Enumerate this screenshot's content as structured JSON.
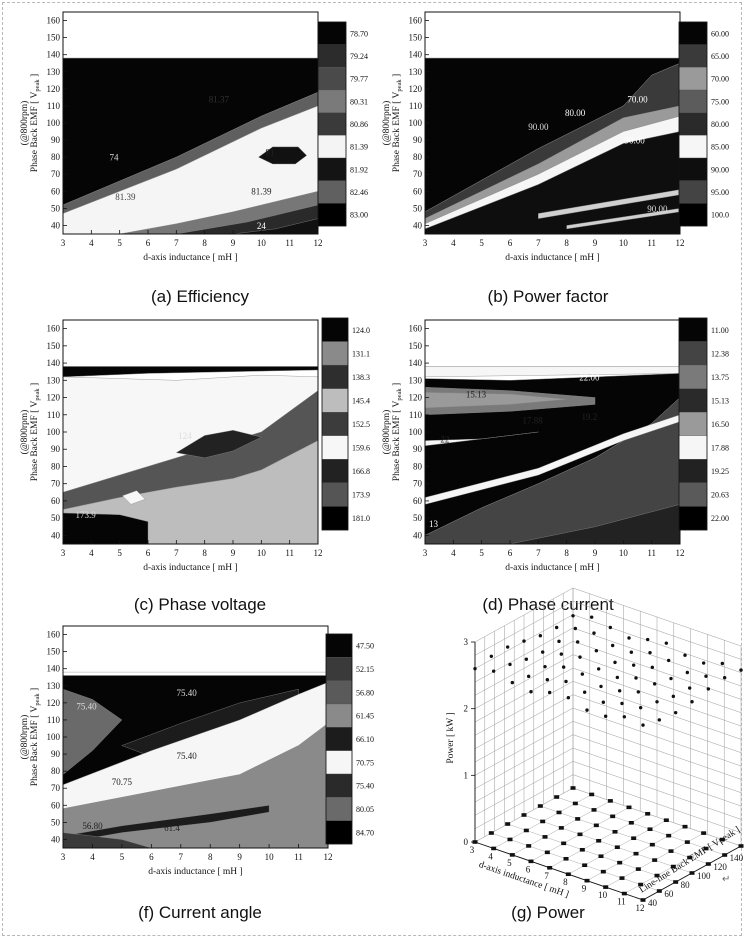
{
  "chart_data": [
    {
      "id": "a",
      "type": "heatmap",
      "caption": "(a)  Efficiency",
      "xlabel": "d-axis inductance [ mH ]",
      "ylabel_top": "(@800rpm)",
      "ylabel_main": "Phase Back EMF [ V",
      "ylabel_sub": "peak",
      "ylabel_end": " ]",
      "xlim": [
        3,
        12
      ],
      "ylim": [
        35,
        165
      ],
      "xticks": [
        "3",
        "4",
        "5",
        "6",
        "7",
        "8",
        "9",
        "10",
        "11",
        "12"
      ],
      "yticks": [
        "40",
        "50",
        "60",
        "70",
        "80",
        "90",
        "100",
        "110",
        "120",
        "130",
        "140",
        "150",
        "160"
      ],
      "colorbar": {
        "labels": [
          "78.70",
          "79.24",
          "79.77",
          "80.31",
          "80.86",
          "81.39",
          "81.92",
          "82.46",
          "83.00"
        ],
        "colors": [
          "#050505",
          "#2c2c2c",
          "#4a4a4a",
          "#7a7a7a",
          "#3a3a3a",
          "#f4f4f4",
          "#141414",
          "#606060",
          "#000000"
        ]
      },
      "contour_labels": [
        "81.37",
        "74",
        "81",
        "81.39",
        "81.39",
        "24"
      ]
    },
    {
      "id": "b",
      "type": "heatmap",
      "caption": "(b)  Power factor",
      "xlabel": "d-axis inductance [ mH ]",
      "ylabel_top": "(@800rpm)",
      "ylabel_main": "Phase Back EMF [ V",
      "ylabel_sub": "peak",
      "ylabel_end": " ]",
      "xlim": [
        3,
        12
      ],
      "ylim": [
        35,
        165
      ],
      "xticks": [
        "3",
        "4",
        "5",
        "6",
        "7",
        "8",
        "9",
        "10",
        "11",
        "12"
      ],
      "yticks": [
        "40",
        "50",
        "60",
        "70",
        "80",
        "90",
        "100",
        "110",
        "120",
        "130",
        "140",
        "150",
        "160"
      ],
      "colorbar": {
        "labels": [
          "60.00",
          "65.00",
          "70.00",
          "75.00",
          "80.00",
          "85.00",
          "90.00",
          "95.00",
          "100.0"
        ],
        "colors": [
          "#050505",
          "#3a3a3a",
          "#9a9a9a",
          "#5c5c5c",
          "#2a2a2a",
          "#f6f6f6",
          "#0e0e0e",
          "#444444",
          "#000000"
        ]
      },
      "contour_labels": [
        "70.00",
        "90.00",
        "90.00",
        "80.00",
        "90.00"
      ]
    },
    {
      "id": "c",
      "type": "heatmap",
      "caption": "(c)  Phase voltage",
      "xlabel": "d-axis inductance [ mH ]",
      "ylabel_top": "(@800rpm)",
      "ylabel_main": "Phase Back EMF [ V",
      "ylabel_sub": "peak",
      "ylabel_end": " ]",
      "xlim": [
        3,
        12
      ],
      "ylim": [
        35,
        165
      ],
      "xticks": [
        "3",
        "4",
        "5",
        "6",
        "7",
        "8",
        "9",
        "10",
        "11",
        "12"
      ],
      "yticks": [
        "40",
        "50",
        "60",
        "70",
        "80",
        "90",
        "100",
        "110",
        "120",
        "130",
        "140",
        "150",
        "160"
      ],
      "colorbar": {
        "labels": [
          "124.0",
          "131.1",
          "138.3",
          "145.4",
          "152.5",
          "159.6",
          "166.8",
          "173.9",
          "181.0"
        ],
        "colors": [
          "#050505",
          "#8a8a8a",
          "#2e2e2e",
          "#bdbdbd",
          "#3c3c3c",
          "#f7f7f7",
          "#222222",
          "#555555",
          "#000000"
        ]
      },
      "contour_labels": [
        "124",
        "173.9"
      ]
    },
    {
      "id": "d",
      "type": "heatmap",
      "caption": "(d)  Phase current",
      "xlabel": "d-axis inductance [ mH ]",
      "ylabel_top": "(@800rpm)",
      "ylabel_main": "Phase Back EMF [ V",
      "ylabel_sub": "peak",
      "ylabel_end": " ]",
      "xlim": [
        3,
        12
      ],
      "ylim": [
        35,
        165
      ],
      "xticks": [
        "3",
        "4",
        "5",
        "6",
        "7",
        "8",
        "9",
        "10",
        "11",
        "12"
      ],
      "yticks": [
        "40",
        "50",
        "60",
        "70",
        "80",
        "90",
        "100",
        "110",
        "120",
        "130",
        "140",
        "150",
        "160"
      ],
      "colorbar": {
        "labels": [
          "11.00",
          "12.38",
          "13.75",
          "15.13",
          "16.50",
          "17.88",
          "19.25",
          "20.63",
          "22.00"
        ],
        "colors": [
          "#050505",
          "#444444",
          "#7a7a7a",
          "#2a2a2a",
          "#9a9a9a",
          "#f6f6f6",
          "#222222",
          "#5a5a5a",
          "#000000"
        ]
      },
      "contour_labels": [
        "22.00",
        "15.13",
        "17.88",
        "19.2",
        "22",
        "13",
        "15.13"
      ]
    },
    {
      "id": "f",
      "type": "heatmap",
      "caption": "(f)  Current angle",
      "xlabel": "d-axis inductance [ mH ]",
      "ylabel_top": "(@800rpm)",
      "ylabel_main": "Phase Back EMF [ V",
      "ylabel_sub": "peak",
      "ylabel_end": " ]",
      "xlim": [
        3,
        12
      ],
      "ylim": [
        35,
        165
      ],
      "xticks": [
        "3",
        "4",
        "5",
        "6",
        "7",
        "8",
        "9",
        "10",
        "11",
        "12"
      ],
      "yticks": [
        "40",
        "50",
        "60",
        "70",
        "80",
        "90",
        "100",
        "110",
        "120",
        "130",
        "140",
        "150",
        "160"
      ],
      "colorbar": {
        "labels": [
          "47.50",
          "52.15",
          "56.80",
          "61.45",
          "66.10",
          "70.75",
          "75.40",
          "80.05",
          "84.70"
        ],
        "colors": [
          "#050505",
          "#3a3a3a",
          "#5a5a5a",
          "#8a8a8a",
          "#1c1c1c",
          "#f6f6f6",
          "#2a2a2a",
          "#6a6a6a",
          "#000000"
        ]
      },
      "contour_labels": [
        "75.40",
        "75.40",
        "70.75",
        "75.40",
        "56.80",
        "61.4"
      ]
    },
    {
      "id": "g",
      "type": "scatter",
      "caption": "(g)  Power",
      "xlabel": "d-axis inductance [ mH ]",
      "ylabel": "Power [ kW ]",
      "zlabel": "Line-line Back EMF [ Vpeak ]",
      "zlim": [
        0,
        3
      ],
      "zticks": [
        "0",
        "1",
        "2",
        "3"
      ],
      "xticks": [
        "3",
        "4",
        "5",
        "6",
        "7",
        "8",
        "9",
        "10",
        "11",
        "12"
      ],
      "depth_ticks": [
        "40",
        "60",
        "80",
        "100",
        "120",
        "140",
        "160"
      ],
      "power_kw_approx": 2.6
    }
  ]
}
